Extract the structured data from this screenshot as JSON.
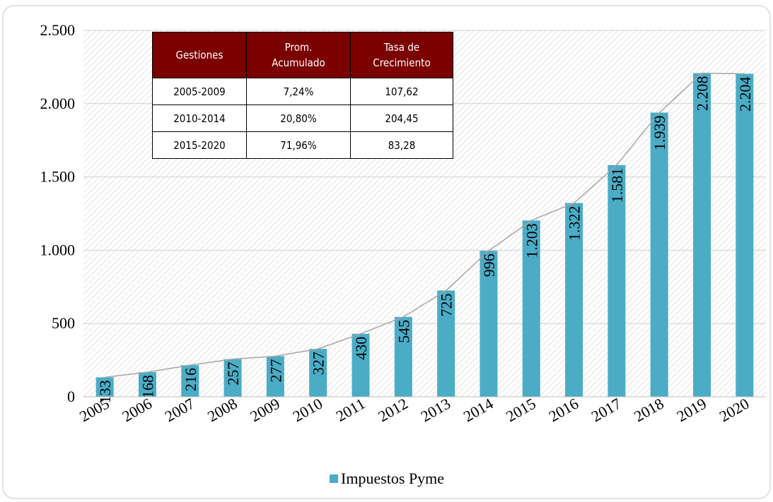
{
  "chart_data": {
    "type": "bar",
    "categories": [
      "2005",
      "2006",
      "2007",
      "2008",
      "2009",
      "2010",
      "2011",
      "2012",
      "2013",
      "2014",
      "2015",
      "2016",
      "2017",
      "2018",
      "2019",
      "2020"
    ],
    "series": [
      {
        "name": "Impuestos Pyme",
        "color": "#4bacc6",
        "values": [
          133,
          168,
          216,
          257,
          277,
          327,
          430,
          545,
          725,
          996,
          1203,
          1322,
          1581,
          1939,
          2208,
          2204
        ],
        "value_labels": [
          "133",
          "168",
          "216",
          "257",
          "277",
          "327",
          "430",
          "545",
          "725",
          "996",
          "1.203",
          "1.322",
          "1.581",
          "1.939",
          "2.208",
          "2.204"
        ]
      }
    ],
    "ylim": [
      0,
      2500
    ],
    "yticks": [
      0,
      500,
      {
        "value": 1000,
        "label": "1.000"
      },
      {
        "value": 1500,
        "label": "1.500"
      },
      {
        "value": 2000,
        "label": "2.000"
      },
      {
        "value": 2500,
        "label": "2.500"
      }
    ],
    "grid": true,
    "connector_line": true,
    "connector_color": "#a6a6a6",
    "legend": "bottom"
  },
  "table": {
    "header": [
      "Gestiones",
      "Prom. Acumulado",
      "Tasa de Crecimiento"
    ],
    "rows": [
      [
        "2005-2009",
        "7,24%",
        "107,62"
      ],
      [
        "2010-2014",
        "20,80%",
        "204,45"
      ],
      [
        "2015-2020",
        "71,96%",
        "83,28"
      ]
    ]
  }
}
